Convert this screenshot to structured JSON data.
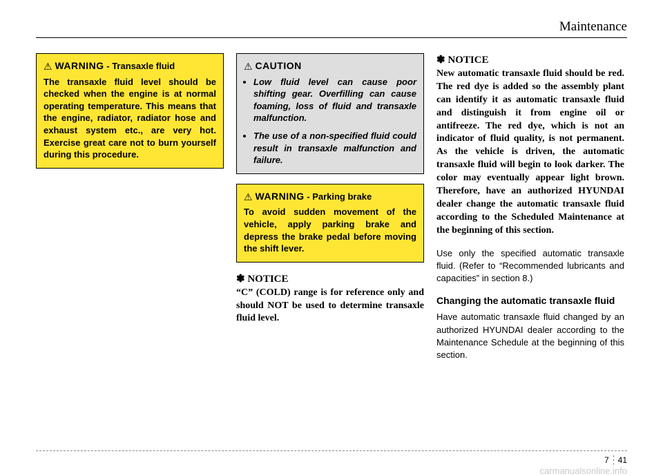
{
  "header": {
    "section_title": "Maintenance"
  },
  "col1": {
    "warning1": {
      "icon": "⚠",
      "word": "WARNING",
      "sep": " - ",
      "subject": "Transaxle fluid",
      "body": "The transaxle fluid level should be checked when the engine is at normal operating temperature. This means that the engine, radiator, radiator hose and exhaust system etc., are very hot. Exercise great care not to burn yourself during this procedure."
    }
  },
  "col2": {
    "caution": {
      "icon": "⚠",
      "word": "CAUTION",
      "li1": "Low fluid level can cause poor shifting gear. Overfilling can cause foaming, loss of fluid and transaxle malfunction.",
      "li2": "The use of a non-specified fluid could result in transaxle malfunction and failure."
    },
    "warning2": {
      "icon": "⚠",
      "word": "WARNING",
      "sep": " - ",
      "subject": "Parking brake",
      "body": "To avoid sudden movement of the vehicle, apply parking brake and depress the brake pedal before moving the shift lever."
    },
    "notice1": {
      "head": "✽ NOTICE",
      "body": "“C” (COLD) range is for reference only and should NOT be used to determine transaxle fluid level."
    }
  },
  "col3": {
    "notice2": {
      "head": "✽ NOTICE",
      "body": "New automatic transaxle fluid should be red. The red dye is added so the assembly plant can identify it as automatic transaxle fluid and distinguish it from engine oil or antifreeze. The red dye, which is not an indicator of fluid quality, is not permanent. As the vehicle is driven, the automatic transaxle fluid will begin to look darker. The color may eventually appear light brown. Therefore, have an authorized HYUNDAI dealer change the automatic transaxle fluid according to the Scheduled Maintenance at the beginning of this section."
    },
    "plain1": "Use only the specified automatic transaxle fluid. (Refer to “Recommended lubricants and capacities” in section 8.)",
    "subhead": "Changing the automatic transaxle fluid",
    "plain2": "Have automatic transaxle fluid changed by an authorized HYUNDAI dealer according to the Maintenance Schedule at the beginning of this section."
  },
  "footer": {
    "chapter": "7",
    "page": "41"
  },
  "watermark": "carmanualsonline.info"
}
